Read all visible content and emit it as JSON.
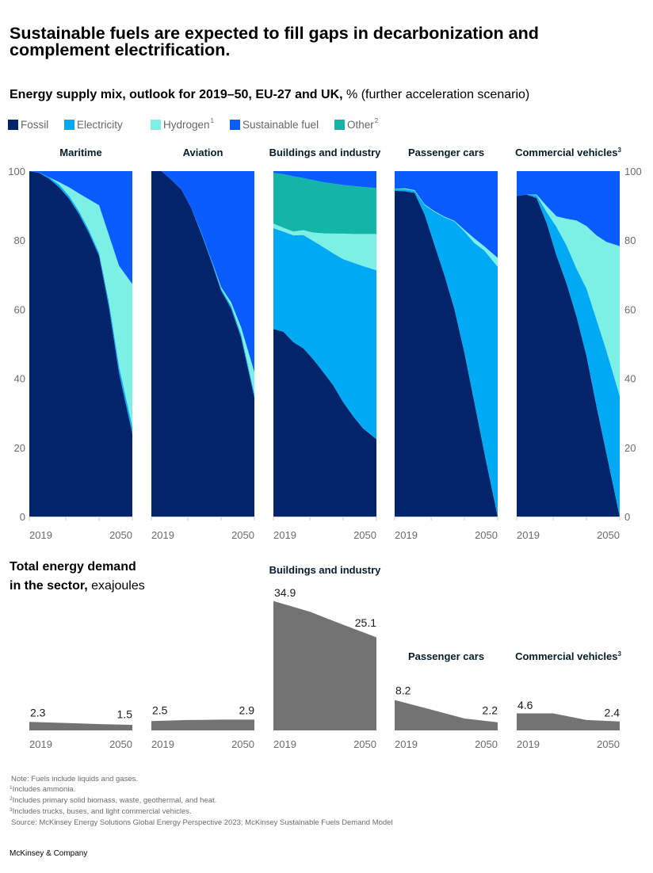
{
  "header": {
    "title": "Sustainable fuels are expected to fill gaps in decarbonization and complement electrification.",
    "subtitle_bold": "Energy supply mix, outlook for 2019–50, EU-27 and UK,",
    "subtitle_rest": "% (further acceleration scenario)"
  },
  "demand_section": {
    "title_line1": "Total energy demand",
    "title_line2_bold": "in the sector,",
    "unit": "exajoules"
  },
  "footnotes": {
    "note": "Note: Fuels include liquids and gases.",
    "items": [
      {
        "marker": "1",
        "text": "Includes ammonia."
      },
      {
        "marker": "2",
        "text": "Includes primary solid biomass, waste, geothermal, and heat."
      },
      {
        "marker": "3",
        "text": "Includes trucks, buses, and light commercial vehicles."
      }
    ],
    "source": "Source: McKinsey Energy Solutions Global Energy Perspective 2023; McKinsey Sustainable Fuels Demand Model"
  },
  "brand": "McKinsey & Company",
  "chart_data": [
    {
      "type": "area",
      "stacked": true,
      "title": "Energy supply mix, outlook for 2019–50, EU-27 and UK, % (further acceleration scenario)",
      "xlabel": "",
      "ylabel": "%",
      "ylim": [
        0,
        100
      ],
      "yticks": [
        0,
        20,
        40,
        60,
        80,
        100
      ],
      "xlim": [
        2019,
        2050
      ],
      "tick_years": [
        2019,
        2030,
        2040,
        2050
      ],
      "xtick_labels": [
        "2019",
        "2050"
      ],
      "grid": false,
      "legend_position": "top-left",
      "legend": [
        {
          "series": "Fossil",
          "label": "Fossil",
          "sup": "",
          "color": "#03246b"
        },
        {
          "series": "Electricity",
          "label": "Electricity",
          "sup": "",
          "color": "#00a9f4"
        },
        {
          "series": "Hydrogen",
          "label": "Hydrogen",
          "sup": "1",
          "color": "#7cf0e4"
        },
        {
          "series": "Sustainable fuel",
          "label": "Sustainable fuel",
          "sup": "",
          "color": "#0a5cff"
        },
        {
          "series": "Other",
          "label": "Other",
          "sup": "2",
          "color": "#13b5a8"
        }
      ],
      "series_order": [
        "Fossil",
        "Electricity",
        "Hydrogen",
        "Other",
        "Sustainable fuel"
      ],
      "x": [
        2019,
        2022,
        2025,
        2028,
        2031,
        2034,
        2037,
        2040,
        2043,
        2046,
        2050
      ],
      "panels": [
        {
          "name": "Maritime",
          "sup": "",
          "series": {
            "Fossil": [
              100,
              99.5,
              97.8,
              95.3,
              92,
              87.5,
              82,
              75.5,
              60.4,
              41.5,
              24
            ],
            "Electricity": [
              0,
              0.1,
              0.4,
              0.8,
              0.8,
              0.8,
              0.8,
              0.8,
              1.5,
              2,
              2
            ],
            "Hydrogen": [
              0,
              0,
              0,
              0.7,
              2.5,
              5.2,
              9,
              13.8,
              19.4,
              29.1,
              41.3
            ],
            "Sustainable fuel": [
              0,
              0.4,
              1.8,
              3.2,
              4.7,
              6.5,
              8.2,
              9.9,
              18.7,
              27.4,
              32.7
            ]
          }
        },
        {
          "name": "Aviation",
          "sup": "",
          "series": {
            "Fossil": [
              100,
              100,
              97.5,
              94.7,
              89.3,
              82,
              74,
              65.4,
              60.2,
              51.8,
              34.5
            ],
            "Electricity": [
              0,
              0,
              0,
              0,
              0,
              0.3,
              0.5,
              0.5,
              0.8,
              1,
              1
            ],
            "Hydrogen": [
              0,
              0,
              0,
              0,
              0,
              0,
              0,
              0.5,
              1,
              2,
              6.3
            ],
            "Sustainable fuel": [
              0,
              0,
              2.5,
              5.3,
              10.7,
              17.7,
              25.5,
              33.6,
              38,
              45.2,
              58.2
            ]
          }
        },
        {
          "name": "Buildings and industry",
          "sup": "",
          "series": {
            "Fossil": [
              54.3,
              53.5,
              50.5,
              48.7,
              45.5,
              41.8,
              38,
              33.1,
              29,
              25.5,
              22.4
            ],
            "Electricity": [
              29.2,
              29,
              30.9,
              32.8,
              34.3,
              36.2,
              38.2,
              41.4,
              44.5,
              47,
              48.9
            ],
            "Hydrogen": [
              1.3,
              1.1,
              1.1,
              1.4,
              2.4,
              4,
              5.7,
              7.4,
              8.3,
              9.3,
              10.5
            ],
            "Other": [
              14.7,
              15.5,
              16,
              15.1,
              15.2,
              14.8,
              14.5,
              14.1,
              13.9,
              13.6,
              13.3
            ],
            "Sustainable fuel": [
              0.5,
              0.9,
              1.5,
              2,
              2.6,
              3.2,
              3.6,
              4,
              4.3,
              4.6,
              4.9
            ]
          }
        },
        {
          "name": "Passenger cars",
          "sup": "",
          "series": {
            "Fossil": [
              94.3,
              94.2,
              93.7,
              87.5,
              78.6,
              69.8,
              60,
              47.4,
              33,
              18.4,
              0
            ],
            "Electricity": [
              0.5,
              0.6,
              0.6,
              2.7,
              9.6,
              16.8,
              25.4,
              35.1,
              46.2,
              58.6,
              72.3
            ],
            "Hydrogen": [
              0.1,
              0.2,
              0.2,
              0.2,
              0.2,
              0.2,
              0.2,
              0.5,
              1.3,
              1.2,
              2.6
            ],
            "Sustainable fuel": [
              5.1,
              5,
              5.5,
              9.6,
              11.6,
              13.2,
              14.4,
              17,
              19.5,
              21.8,
              25.1
            ]
          }
        },
        {
          "name": "Commercial vehicles",
          "sup": "3",
          "series": {
            "Fossil": [
              92.8,
              93.2,
              92.2,
              85,
              75.5,
              67.5,
              57.9,
              46.5,
              32,
              18.3,
              0
            ],
            "Electricity": [
              0,
              0,
              0.8,
              3.2,
              8.3,
              11,
              13.9,
              19.5,
              25,
              29.7,
              34.9
            ],
            "Hydrogen": [
              0,
              0,
              0.2,
              1.7,
              3.1,
              7.7,
              13.9,
              18.1,
              24.4,
              31.5,
              43.4
            ],
            "Sustainable fuel": [
              7.2,
              6.8,
              6.8,
              10.1,
              13.1,
              13.8,
              14.3,
              15.9,
              18.6,
              20.5,
              21.7
            ]
          }
        }
      ]
    },
    {
      "type": "area",
      "title": "Total energy demand in the sector, exajoules",
      "xlabel": "",
      "ylabel": "exajoules",
      "x": [
        2019,
        2030,
        2040,
        2050
      ],
      "xtick_labels": [
        "2019",
        "2050"
      ],
      "color": "#737373",
      "grid": false,
      "panels": [
        {
          "sector": "Maritime",
          "title": "",
          "sup": "",
          "values": [
            2.3,
            2.0,
            1.7,
            1.5
          ],
          "start_label": "2.3",
          "end_label": "1.5"
        },
        {
          "sector": "Aviation",
          "title": "",
          "sup": "",
          "values": [
            2.5,
            2.8,
            2.9,
            2.9
          ],
          "start_label": "2.5",
          "end_label": "2.9"
        },
        {
          "sector": "Buildings and industry",
          "title": "Buildings and industry",
          "sup": "",
          "values": [
            34.9,
            32.0,
            28.5,
            25.1
          ],
          "start_label": "34.9",
          "end_label": "25.1"
        },
        {
          "sector": "Passenger cars",
          "title": "Passenger cars",
          "sup": "",
          "values": [
            8.2,
            5.6,
            3.2,
            2.2
          ],
          "start_label": "8.2",
          "end_label": "2.2"
        },
        {
          "sector": "Commercial vehicles",
          "title": "Commercial vehicles",
          "sup": "3",
          "values": [
            4.6,
            4.6,
            2.8,
            2.4
          ],
          "start_label": "4.6",
          "end_label": "2.4"
        }
      ]
    }
  ]
}
